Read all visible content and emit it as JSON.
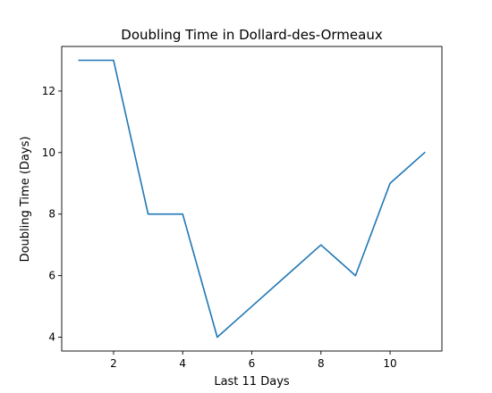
{
  "chart_data": {
    "type": "line",
    "title": "Doubling Time in  Dollard-des-Ormeaux",
    "xlabel": "Last 11 Days",
    "ylabel": "Doubling Time (Days)",
    "x": [
      1,
      2,
      3,
      4,
      5,
      6,
      7,
      8,
      9,
      10,
      11
    ],
    "series": [
      {
        "values": [
          13,
          13,
          8,
          8,
          4,
          5,
          6,
          7,
          6,
          9,
          10
        ],
        "color": "#1f77b4"
      }
    ],
    "xlim": [
      0.5,
      11.5
    ],
    "ylim": [
      3.55,
      13.45
    ],
    "xticks": [
      2,
      4,
      6,
      8,
      10
    ],
    "yticks": [
      4,
      6,
      8,
      10,
      12
    ],
    "grid": false,
    "legend": "none"
  }
}
